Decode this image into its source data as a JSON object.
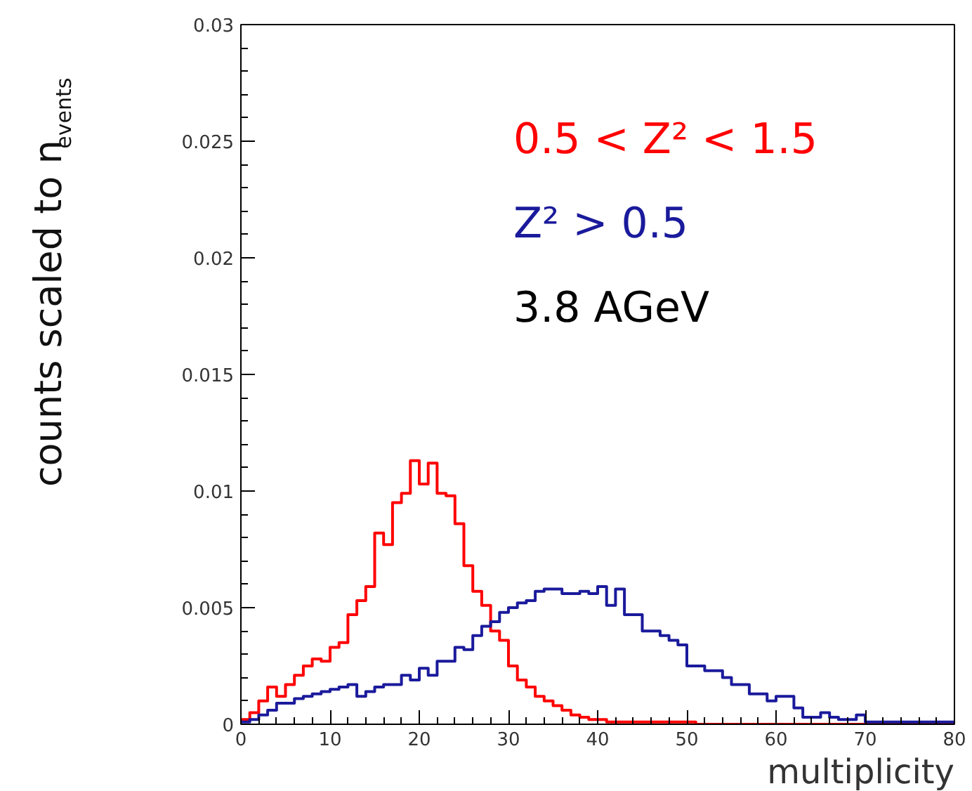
{
  "chart_data": {
    "type": "histogram",
    "xlabel": "multiplicity",
    "ylabel": "counts scaled to n$_{events}$",
    "bins": [
      0,
      1,
      2,
      3,
      4,
      5,
      6,
      7,
      8,
      9,
      10,
      11,
      12,
      13,
      14,
      15,
      16,
      17,
      18,
      19,
      20,
      21,
      22,
      23,
      24,
      25,
      26,
      27,
      28,
      29,
      30,
      31,
      32,
      33,
      34,
      35,
      36,
      37,
      38,
      39,
      40,
      41,
      42,
      43,
      44,
      45,
      46,
      47,
      48,
      49,
      50,
      51,
      52,
      53,
      54,
      55,
      56,
      57,
      58,
      59,
      60,
      61,
      62,
      63,
      64,
      65,
      66,
      67,
      68,
      69,
      70,
      71,
      72,
      73,
      74,
      75,
      76,
      77,
      78,
      79,
      80
    ],
    "series": [
      {
        "name": "0.5 < Z² < 1.5",
        "color": "#ff0000",
        "values": [
          0.0002,
          0.0005,
          0.001,
          0.0016,
          0.0012,
          0.0017,
          0.0021,
          0.0025,
          0.0028,
          0.0027,
          0.0033,
          0.0035,
          0.0047,
          0.0053,
          0.0059,
          0.0082,
          0.0077,
          0.0095,
          0.0099,
          0.0113,
          0.0103,
          0.0112,
          0.0099,
          0.0098,
          0.0086,
          0.0068,
          0.0057,
          0.0051,
          0.004,
          0.0036,
          0.0025,
          0.0019,
          0.0016,
          0.0012,
          0.001,
          0.0008,
          0.0006,
          0.0004,
          0.0003,
          0.0002,
          0.0002,
          0.0001,
          0.0001,
          0.0001,
          0.0001,
          0.0001,
          0.0001,
          0.0001,
          0.0001,
          0.0001,
          0.0001,
          0,
          0,
          0,
          0,
          0,
          0,
          0,
          0,
          0,
          0,
          0,
          0,
          0,
          0,
          0,
          0,
          0,
          0,
          0,
          0,
          0,
          0,
          0,
          0,
          0,
          0,
          0,
          0,
          0
        ]
      },
      {
        "name": "Z² > 0.5",
        "color": "#1a1a9c",
        "values": [
          0.0001,
          0.0002,
          0.0004,
          0.0006,
          0.0009,
          0.0009,
          0.0011,
          0.0012,
          0.0013,
          0.0014,
          0.0015,
          0.0016,
          0.0017,
          0.0012,
          0.0014,
          0.0016,
          0.0017,
          0.0017,
          0.0021,
          0.0019,
          0.0024,
          0.0021,
          0.0027,
          0.0027,
          0.0033,
          0.0032,
          0.0038,
          0.0042,
          0.0044,
          0.0048,
          0.005,
          0.0052,
          0.0053,
          0.0057,
          0.0058,
          0.0058,
          0.0056,
          0.0056,
          0.0057,
          0.0056,
          0.0059,
          0.0051,
          0.0058,
          0.0047,
          0.0047,
          0.004,
          0.004,
          0.0038,
          0.0036,
          0.0034,
          0.0025,
          0.0025,
          0.0023,
          0.0023,
          0.002,
          0.0017,
          0.0017,
          0.0013,
          0.0013,
          0.001,
          0.0012,
          0.0012,
          0.0007,
          0.0003,
          0.0003,
          0.0005,
          0.0003,
          0.0002,
          0.0002,
          0.0004,
          0.0001,
          0.0001,
          0.0001,
          0.0001,
          0.0001,
          0.0001,
          0.0001,
          0.0001,
          0.0001,
          0.0001
        ]
      }
    ],
    "annotations": [
      "3.8 AGeV"
    ],
    "xlim": [
      0,
      80
    ],
    "xticks": [
      0,
      10,
      20,
      30,
      40,
      50,
      60,
      70,
      80
    ],
    "ylim": [
      0,
      0.03
    ],
    "yticks": [
      0,
      0.005,
      0.01,
      0.015,
      0.02,
      0.025,
      0.03
    ],
    "legend": "top right",
    "grid": false
  }
}
